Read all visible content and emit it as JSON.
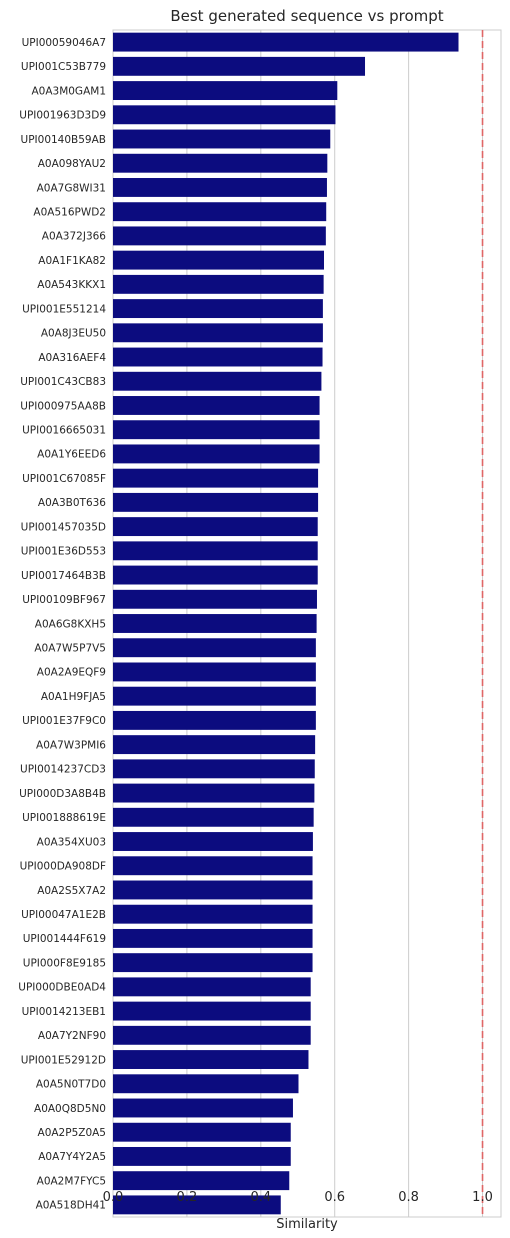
{
  "chart_data": {
    "type": "bar",
    "orientation": "horizontal",
    "title": "Best generated sequence vs prompt",
    "xlabel": "Similarity",
    "ylabel": "",
    "xlim": [
      0,
      1.05
    ],
    "xticks": [
      "0.0",
      "0.2",
      "0.4",
      "0.6",
      "0.8",
      "1.0"
    ],
    "grid": true,
    "bar_color": "#0c0c7f",
    "reference_line": {
      "x": 1.0,
      "color": "#e06666",
      "style": "dashed"
    },
    "categories": [
      "UPI00059046A7",
      "UPI001C53B779",
      "A0A3M0GAM1",
      "UPI001963D3D9",
      "UPI00140B59AB",
      "A0A098YAU2",
      "A0A7G8WI31",
      "A0A516PWD2",
      "A0A372J366",
      "A0A1F1KA82",
      "A0A543KKX1",
      "UPI001E551214",
      "A0A8J3EU50",
      "A0A316AEF4",
      "UPI001C43CB83",
      "UPI000975AA8B",
      "UPI0016665031",
      "A0A1Y6EED6",
      "UPI001C67085F",
      "A0A3B0T636",
      "UPI001457035D",
      "UPI001E36D553",
      "UPI0017464B3B",
      "UPI00109BF967",
      "A0A6G8KXH5",
      "A0A7W5P7V5",
      "A0A2A9EQF9",
      "A0A1H9FJA5",
      "UPI001E37F9C0",
      "A0A7W3PMI6",
      "UPI0014237CD3",
      "UPI000D3A8B4B",
      "UPI001888619E",
      "A0A354XU03",
      "UPI000DA908DF",
      "A0A2S5X7A2",
      "UPI00047A1E2B",
      "UPI001444F619",
      "UPI000F8E9185",
      "UPI000DBE0AD4",
      "UPI0014213EB1",
      "A0A7Y2NF90",
      "UPI001E52912D",
      "A0A5N0T7D0",
      "A0A0Q8D5N0",
      "A0A2P5Z0A5",
      "A0A7Y4Y2A5",
      "A0A2M7FYC5",
      "A0A518DH41"
    ],
    "values": [
      0.935,
      0.682,
      0.607,
      0.602,
      0.588,
      0.58,
      0.579,
      0.577,
      0.576,
      0.571,
      0.57,
      0.568,
      0.568,
      0.567,
      0.564,
      0.559,
      0.559,
      0.559,
      0.555,
      0.555,
      0.554,
      0.554,
      0.554,
      0.552,
      0.551,
      0.549,
      0.549,
      0.549,
      0.549,
      0.547,
      0.546,
      0.545,
      0.543,
      0.541,
      0.54,
      0.54,
      0.54,
      0.54,
      0.54,
      0.535,
      0.535,
      0.535,
      0.529,
      0.502,
      0.487,
      0.481,
      0.481,
      0.477,
      0.454
    ]
  }
}
